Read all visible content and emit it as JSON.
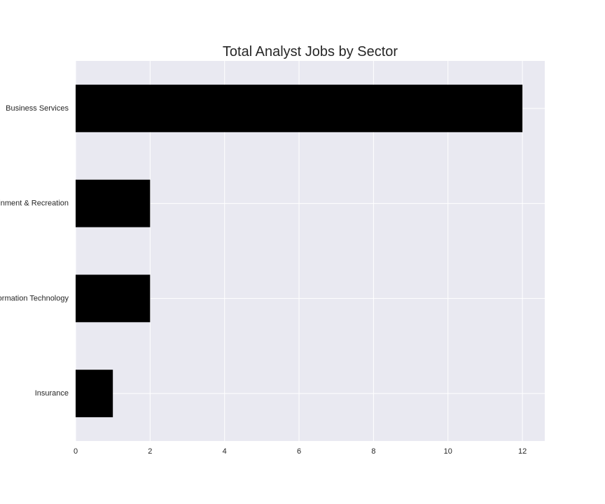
{
  "chart_data": {
    "type": "bar",
    "orientation": "horizontal",
    "title": "Total Analyst Jobs by Sector",
    "xlabel": "",
    "ylabel": "",
    "categories": [
      "Business Services",
      "Arts, Entertainment & Recreation",
      "Information Technology",
      "Insurance"
    ],
    "values": [
      12,
      2,
      2,
      1
    ],
    "xlim": [
      0,
      12.6
    ],
    "x_ticks": [
      0,
      2,
      4,
      6,
      8,
      10,
      12
    ],
    "x_tick_labels": [
      "0",
      "2",
      "4",
      "6",
      "8",
      "10",
      "12"
    ],
    "grid": true,
    "colors": {
      "bar": "#000000",
      "plot_background": "#e9e9f1",
      "grid": "#ffffff",
      "text": "#262626"
    }
  }
}
